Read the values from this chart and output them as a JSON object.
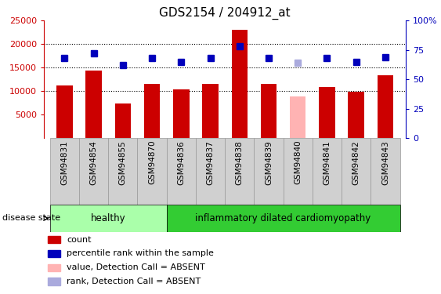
{
  "title": "GDS2154 / 204912_at",
  "samples": [
    "GSM94831",
    "GSM94854",
    "GSM94855",
    "GSM94870",
    "GSM94836",
    "GSM94837",
    "GSM94838",
    "GSM94839",
    "GSM94840",
    "GSM94841",
    "GSM94842",
    "GSM94843"
  ],
  "bar_values": [
    11200,
    14400,
    7300,
    11500,
    10300,
    11500,
    23000,
    11500,
    null,
    10800,
    9800,
    13400
  ],
  "bar_absent_values": [
    null,
    null,
    null,
    null,
    null,
    null,
    null,
    null,
    8900,
    null,
    null,
    null
  ],
  "rank_values": [
    68,
    72,
    62,
    68,
    65,
    68,
    78,
    68,
    null,
    68,
    65,
    69
  ],
  "rank_absent_values": [
    null,
    null,
    null,
    null,
    null,
    null,
    null,
    null,
    64,
    null,
    null,
    null
  ],
  "bar_color": "#cc0000",
  "bar_absent_color": "#ffb3b3",
  "rank_color": "#0000bb",
  "rank_absent_color": "#aaaadd",
  "ylim_left": [
    0,
    25000
  ],
  "ylim_right": [
    0,
    100
  ],
  "yticks_left": [
    5000,
    10000,
    15000,
    20000,
    25000
  ],
  "yticks_right": [
    0,
    25,
    50,
    75,
    100
  ],
  "ytick_labels_right": [
    "0",
    "25",
    "50",
    "75",
    "100%"
  ],
  "grid_dotted_values": [
    10000,
    15000,
    20000
  ],
  "bar_width": 0.55,
  "healthy_range": [
    0,
    3
  ],
  "disease_range": [
    4,
    11
  ],
  "healthy_color": "#aaffaa",
  "disease_color": "#33cc33",
  "healthy_label": "healthy",
  "disease_label": "inflammatory dilated cardiomyopathy",
  "disease_state_label": "disease state",
  "legend_items": [
    {
      "label": "count",
      "color": "#cc0000"
    },
    {
      "label": "percentile rank within the sample",
      "color": "#0000bb"
    },
    {
      "label": "value, Detection Call = ABSENT",
      "color": "#ffb3b3"
    },
    {
      "label": "rank, Detection Call = ABSENT",
      "color": "#aaaadd"
    }
  ],
  "tick_label_bg": "#d0d0d0",
  "tick_label_border": "#999999"
}
